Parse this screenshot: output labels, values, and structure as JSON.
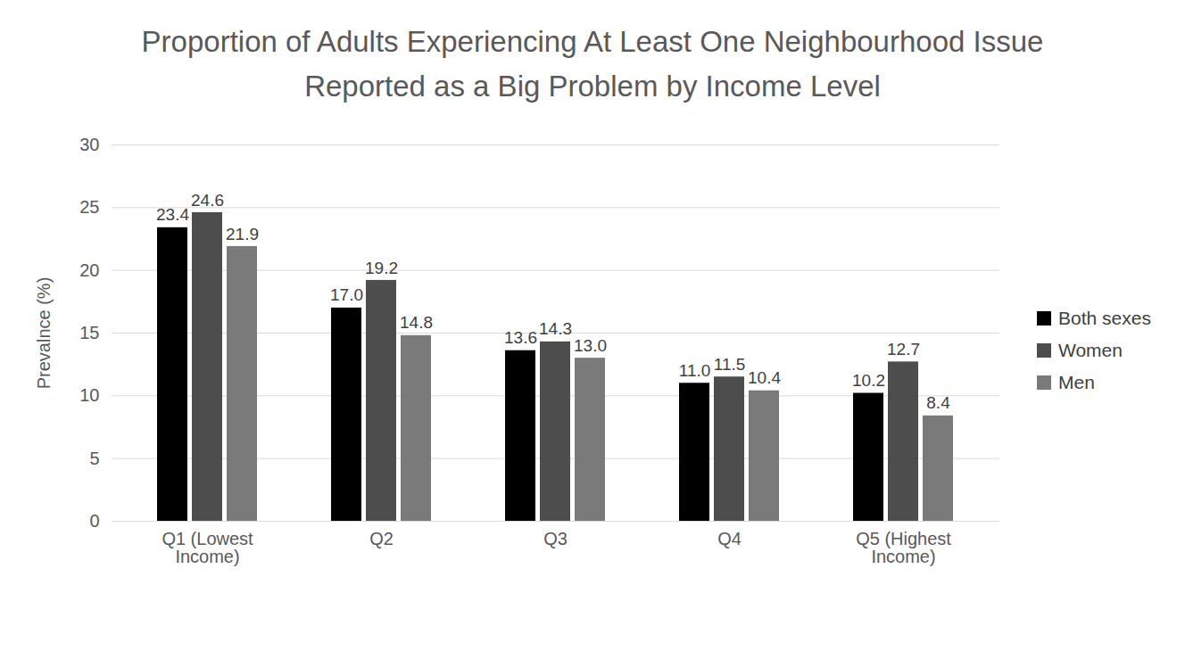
{
  "chart_data": {
    "type": "bar",
    "title": "Proportion of Adults Experiencing At Least One Neighbourhood Issue Reported as a Big Problem by Income Level",
    "y_label": "Prevalnce (%)",
    "categories": [
      "Q1 (Lowest Income)",
      "Q2",
      "Q3",
      "Q4",
      "Q5 (Highest Income)"
    ],
    "series": [
      {
        "name": "Both sexes",
        "color": "#000000",
        "values": [
          23.4,
          17.0,
          13.6,
          11.0,
          10.2
        ],
        "value_labels": [
          "23.4",
          "17.0",
          "13.6",
          "11.0",
          "10.2"
        ]
      },
      {
        "name": "Women",
        "color": "#4d4d4d",
        "values": [
          24.6,
          19.2,
          14.3,
          11.5,
          12.7
        ],
        "value_labels": [
          "24.6",
          "19.2",
          "14.3",
          "11.5",
          "12.7"
        ]
      },
      {
        "name": "Men",
        "color": "#7a7a7a",
        "values": [
          21.9,
          14.8,
          13.0,
          10.4,
          8.4
        ],
        "value_labels": [
          "21.9",
          "14.8",
          "13.0",
          "10.4",
          "8.4"
        ]
      }
    ],
    "ylim": [
      0,
      30
    ],
    "yticks": [
      0,
      5,
      10,
      15,
      20,
      25,
      30
    ],
    "grid": true,
    "legend": "right",
    "data_labels": true
  }
}
